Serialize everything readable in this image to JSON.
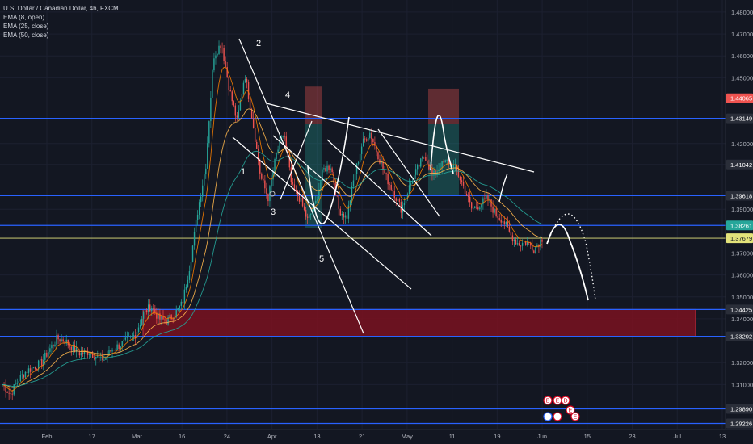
{
  "legend": {
    "symbol": "U.S. Dollar / Canadian Dollar, 4h, FXCM",
    "ema1": "EMA (8, open)",
    "ema2": "EMA (25, close)",
    "ema3": "EMA (50, close)"
  },
  "colors": {
    "background": "#131722",
    "up_candle": "#26a69a",
    "down_candle": "#ef5350",
    "ema_fast": "#f57c00",
    "ema_mid": "#ffb74d",
    "ema_slow": "#26a69a",
    "level_line": "#2962ff",
    "current_line": "#e3e37a",
    "zone_fill": "#7a1220",
    "drawing": "#ffffff"
  },
  "chart_data": {
    "type": "candlestick",
    "symbol": "USDCAD",
    "timeframe": "4h",
    "x_ticks": [
      "Feb",
      "17",
      "Mar",
      "16",
      "24",
      "Apr",
      "13",
      "21",
      "May",
      "11",
      "19",
      "Jun",
      "15",
      "23",
      "Jul",
      "13"
    ],
    "y_ticks": [
      "1.48000",
      "1.47000",
      "1.46000",
      "1.45000",
      "1.43149",
      "1.42000",
      "1.41042",
      "1.39618",
      "1.39000",
      "1.38261",
      "1.37679",
      "1.37000",
      "1.36000",
      "1.35000",
      "1.34425",
      "1.34000",
      "1.33202",
      "1.32000",
      "1.31000",
      "1.29890",
      "1.29226"
    ],
    "ylim": [
      1.2895,
      1.4855
    ],
    "price_labels": [
      {
        "value": 1.44065,
        "label": "1.44065",
        "color": "#ef5350"
      },
      {
        "value": 1.43149,
        "label": "1.43149",
        "color": "#2a2e39"
      },
      {
        "value": 1.41042,
        "label": "1.41042",
        "color": "#2a2e39"
      },
      {
        "value": 1.39618,
        "label": "1.39618",
        "color": "#2a2e39"
      },
      {
        "value": 1.38261,
        "label": "1.38261",
        "color": "#26a69a"
      },
      {
        "value": 1.37679,
        "label": "1.37679",
        "color": "#e3e37a"
      },
      {
        "value": 1.34425,
        "label": "1.34425",
        "color": "#2a2e39"
      },
      {
        "value": 1.33202,
        "label": "1.33202",
        "color": "#2a2e39"
      },
      {
        "value": 1.2989,
        "label": "1.29890",
        "color": "#2a2e39"
      },
      {
        "value": 1.29226,
        "label": "1.29226",
        "color": "#2a2e39"
      }
    ],
    "horizontal_levels": [
      1.43149,
      1.39618,
      1.38261,
      1.34425,
      1.33202,
      1.2989,
      1.29226
    ],
    "current_price": 1.37679,
    "price_path": [
      [
        1.31,
        1.3055
      ],
      [
        1.312,
        1.316
      ],
      [
        1.318,
        1.32
      ],
      [
        1.326,
        1.331
      ],
      [
        1.33,
        1.3265
      ],
      [
        1.324,
        1.325
      ],
      [
        1.323,
        1.3215
      ],
      [
        1.326,
        1.328
      ],
      [
        1.33,
        1.333
      ],
      [
        1.342,
        1.346
      ],
      [
        1.34,
        1.339
      ],
      [
        1.342,
        1.347
      ],
      [
        1.365,
        1.39
      ],
      [
        1.41,
        1.46
      ],
      [
        1.466,
        1.445
      ],
      [
        1.43,
        1.452
      ],
      [
        1.43,
        1.405
      ],
      [
        1.395,
        1.415
      ],
      [
        1.425,
        1.4
      ],
      [
        1.395,
        1.385
      ],
      [
        1.392,
        1.408
      ],
      [
        1.41,
        1.39
      ],
      [
        1.386,
        1.405
      ],
      [
        1.42,
        1.425
      ],
      [
        1.415,
        1.405
      ],
      [
        1.398,
        1.39
      ],
      [
        1.4,
        1.408
      ],
      [
        1.415,
        1.405
      ],
      [
        1.41,
        1.412
      ],
      [
        1.408,
        1.4
      ],
      [
        1.39,
        1.392
      ],
      [
        1.395,
        1.388
      ],
      [
        1.385,
        1.378
      ],
      [
        1.374,
        1.375
      ],
      [
        1.372,
        1.3767
      ]
    ],
    "ema_fast_offsets": [
      0.0005,
      0.0008
    ],
    "annotations": {
      "wave_labels": [
        "1",
        "2",
        "3",
        "4",
        "5"
      ]
    },
    "boxes": [
      {
        "kind": "demand_zone",
        "price_top": 1.34425,
        "price_bottom": 1.33202
      }
    ]
  },
  "badges": [
    "E",
    "E",
    "D",
    "E",
    "E"
  ]
}
